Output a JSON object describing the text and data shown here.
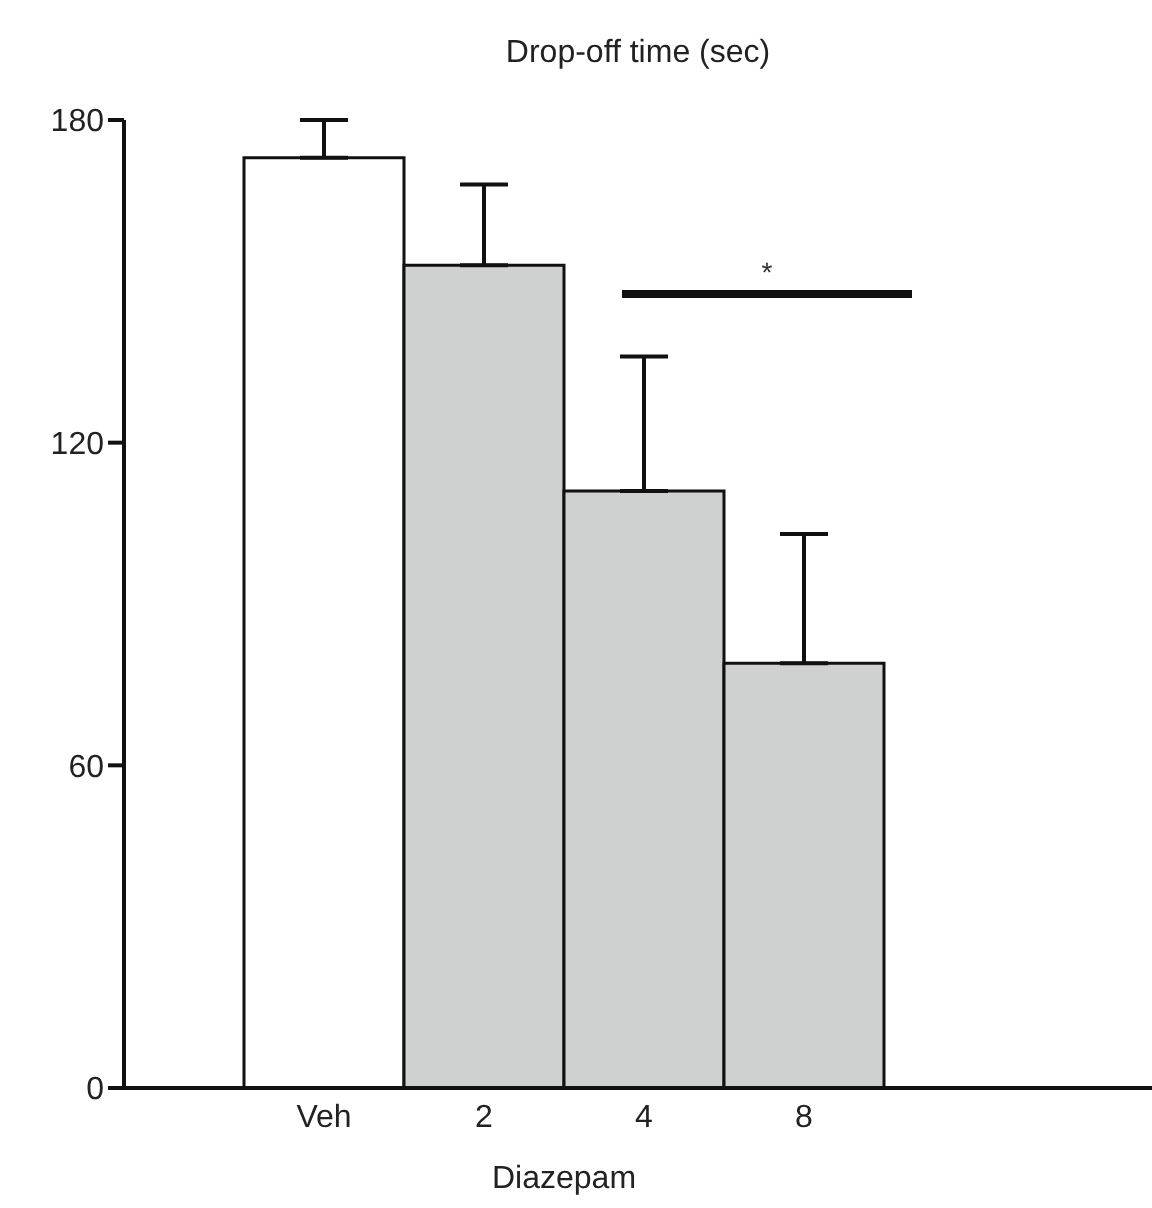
{
  "chart_data": {
    "type": "bar",
    "title": "Drop-off time (sec)",
    "xlabel": "Diazepam",
    "categories": [
      "Veh",
      "2",
      "4",
      "8"
    ],
    "values": [
      173,
      153,
      111,
      79
    ],
    "colors": [
      "#ffffff",
      "#cfd0d0",
      "#cfd0d0",
      "#cfd0d0"
    ],
    "errors": [
      [
        173,
        180
      ],
      [
        153,
        168
      ],
      [
        111,
        136
      ],
      [
        79,
        103
      ]
    ],
    "ylim": [
      0,
      180
    ],
    "yticks": [
      0,
      60,
      120,
      180
    ],
    "grid": false,
    "legend": false,
    "annotations": [
      "*"
    ]
  }
}
